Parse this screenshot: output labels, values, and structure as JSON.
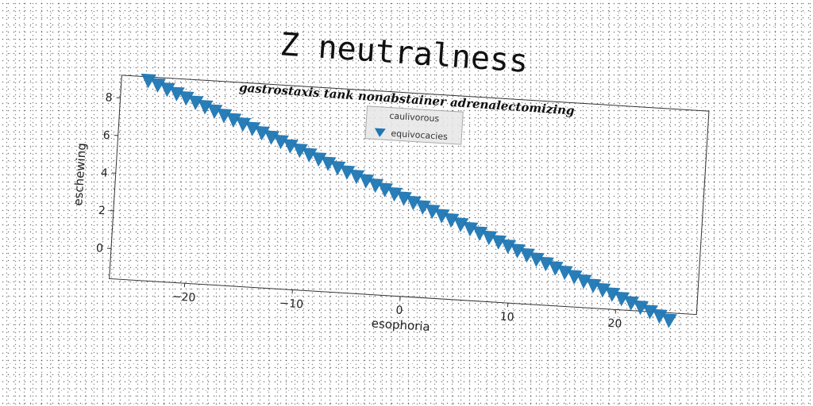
{
  "chart_data": {
    "type": "scatter",
    "title": "Z neutralness",
    "subtitle": "gastrostaxis tank nonabstainer adrenalectomizing",
    "xlabel": "esophoria",
    "ylabel": "eschewing",
    "xlim": [
      -27,
      27.5
    ],
    "ylim": [
      -1.6,
      9.2
    ],
    "xticks": [
      -20,
      -10,
      0,
      10,
      20
    ],
    "yticks": [
      0,
      2,
      4,
      6,
      8
    ],
    "grid": false,
    "legend": {
      "placement": "top-center",
      "title": "caulivorous",
      "entries": [
        "equivocacies"
      ]
    },
    "series": [
      {
        "name": "equivocacies",
        "marker": "triangle-down",
        "color": "#1f77b4",
        "points": [
          [
            -24.5,
            9.0
          ],
          [
            -23.6,
            8.8
          ],
          [
            -22.7,
            8.6
          ],
          [
            -21.8,
            8.4
          ],
          [
            -20.9,
            8.2
          ],
          [
            -20.0,
            8.0
          ],
          [
            -19.1,
            7.8
          ],
          [
            -18.2,
            7.6
          ],
          [
            -17.3,
            7.4
          ],
          [
            -16.4,
            7.2
          ],
          [
            -15.5,
            7.0
          ],
          [
            -14.6,
            6.8
          ],
          [
            -13.7,
            6.6
          ],
          [
            -12.8,
            6.4
          ],
          [
            -11.9,
            6.2
          ],
          [
            -11.0,
            6.0
          ],
          [
            -10.1,
            5.8
          ],
          [
            -9.2,
            5.6
          ],
          [
            -8.3,
            5.4
          ],
          [
            -7.4,
            5.2
          ],
          [
            -6.5,
            5.0
          ],
          [
            -5.6,
            4.8
          ],
          [
            -4.7,
            4.6
          ],
          [
            -3.8,
            4.4
          ],
          [
            -2.9,
            4.2
          ],
          [
            -2.0,
            4.0
          ],
          [
            -1.1,
            3.8
          ],
          [
            -0.2,
            3.6
          ],
          [
            0.7,
            3.4
          ],
          [
            1.6,
            3.2
          ],
          [
            2.5,
            3.0
          ],
          [
            3.4,
            2.8
          ],
          [
            4.3,
            2.6
          ],
          [
            5.2,
            2.4
          ],
          [
            6.1,
            2.2
          ],
          [
            7.0,
            2.0
          ],
          [
            7.9,
            1.8
          ],
          [
            8.8,
            1.6
          ],
          [
            9.7,
            1.4
          ],
          [
            10.6,
            1.2
          ],
          [
            11.5,
            1.0
          ],
          [
            12.4,
            0.8
          ],
          [
            13.3,
            0.6
          ],
          [
            14.2,
            0.4
          ],
          [
            15.1,
            0.2
          ],
          [
            16.0,
            0.0
          ],
          [
            16.9,
            -0.2
          ],
          [
            17.8,
            -0.4
          ],
          [
            18.7,
            -0.6
          ],
          [
            19.6,
            -0.8
          ],
          [
            20.5,
            -1.0
          ],
          [
            21.4,
            -1.2
          ],
          [
            22.3,
            -1.4
          ],
          [
            23.2,
            -1.6
          ],
          [
            24.1,
            -1.8
          ],
          [
            25.0,
            -2.0
          ]
        ]
      }
    ]
  }
}
